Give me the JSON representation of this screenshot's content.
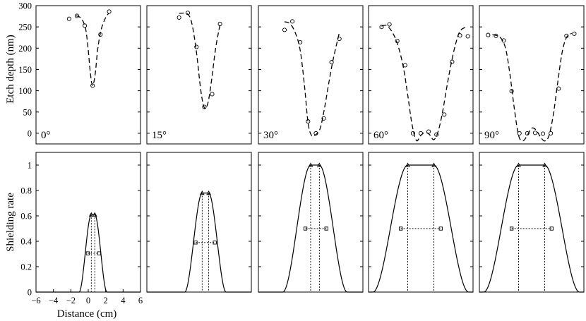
{
  "chart_data": {
    "type": "scatter",
    "layout": "2 rows x 5 panels, shared axes",
    "x": {
      "label": "Distance (cm)",
      "range": [
        -6,
        6
      ],
      "ticks": [
        -6,
        -4,
        -2,
        0,
        2,
        4,
        6
      ]
    },
    "top_row": {
      "ylabel": "Etch depth (nm)",
      "ylim": [
        -25,
        300
      ],
      "yticks": [
        0,
        50,
        100,
        150,
        200,
        250,
        300
      ],
      "series_style": {
        "measured": "open circles",
        "fit": "dashed line"
      }
    },
    "bottom_row": {
      "ylabel": "Shielding rate",
      "ylim": [
        0,
        1.1
      ],
      "yticks": [
        0,
        0.2,
        0.4,
        0.6,
        0.8,
        1
      ],
      "series_style": {
        "profile": "solid line",
        "top_points": "triangles",
        "half_points": "squares",
        "guides": "dotted lines"
      }
    },
    "panels": [
      {
        "angle": "0°",
        "measured": [
          [
            -2.2,
            269
          ],
          [
            -1.3,
            276
          ],
          [
            -0.4,
            253
          ],
          [
            0.5,
            112
          ],
          [
            1.4,
            232
          ],
          [
            2.4,
            286
          ]
        ],
        "fit": [
          [
            -1.4,
            276
          ],
          [
            -0.8,
            270
          ],
          [
            -0.3,
            245
          ],
          [
            0.0,
            195
          ],
          [
            0.25,
            140
          ],
          [
            0.5,
            112
          ],
          [
            0.8,
            140
          ],
          [
            1.1,
            200
          ],
          [
            1.5,
            245
          ],
          [
            2.0,
            272
          ],
          [
            2.4,
            283
          ]
        ],
        "plateau": 0.61,
        "top_points": [
          0.35,
          0.75
        ],
        "half_points": [
          -0.05,
          1.25
        ],
        "half_level": 0.305,
        "rise_width": 0.7
      },
      {
        "angle": "15°",
        "measured": [
          [
            -2.3,
            272
          ],
          [
            -1.3,
            283
          ],
          [
            -0.3,
            203
          ],
          [
            0.6,
            62
          ],
          [
            1.5,
            92
          ],
          [
            2.4,
            257
          ]
        ],
        "fit": [
          [
            -2.3,
            282
          ],
          [
            -1.3,
            280
          ],
          [
            -0.8,
            255
          ],
          [
            -0.3,
            190
          ],
          [
            0.2,
            100
          ],
          [
            0.6,
            60
          ],
          [
            1.0,
            70
          ],
          [
            1.4,
            120
          ],
          [
            1.9,
            200
          ],
          [
            2.4,
            255
          ]
        ],
        "plateau": 0.78,
        "top_points": [
          0.35,
          1.1
        ],
        "half_points": [
          -0.4,
          1.8
        ],
        "half_level": 0.39,
        "rise_width": 1.0
      },
      {
        "angle": "30°",
        "measured": [
          [
            -3.0,
            243
          ],
          [
            -2.1,
            263
          ],
          [
            -1.2,
            214
          ],
          [
            -0.3,
            28
          ],
          [
            0.6,
            0
          ],
          [
            1.5,
            35
          ],
          [
            2.4,
            167
          ],
          [
            3.3,
            222
          ]
        ],
        "fit": [
          [
            -3.0,
            262
          ],
          [
            -2.4,
            258
          ],
          [
            -1.8,
            238
          ],
          [
            -1.2,
            195
          ],
          [
            -0.7,
            110
          ],
          [
            -0.3,
            25
          ],
          [
            0.1,
            -5
          ],
          [
            0.6,
            -3
          ],
          [
            1.1,
            12
          ],
          [
            1.6,
            60
          ],
          [
            2.1,
            120
          ],
          [
            2.6,
            175
          ],
          [
            3.3,
            237
          ]
        ],
        "plateau": 1.0,
        "top_points": [
          0.0,
          1.0
        ],
        "half_points": [
          -0.6,
          1.8
        ],
        "half_level": 0.5,
        "rise_width": 1.6
      },
      {
        "angle": "60°",
        "measured": [
          [
            -4.5,
            250
          ],
          [
            -3.6,
            256
          ],
          [
            -2.7,
            217
          ],
          [
            -1.8,
            160
          ],
          [
            -0.9,
            0
          ],
          [
            0.0,
            0
          ],
          [
            0.9,
            4
          ],
          [
            1.8,
            -3
          ],
          [
            2.7,
            44
          ],
          [
            3.6,
            168
          ],
          [
            4.5,
            230
          ],
          [
            5.4,
            228
          ]
        ],
        "fit": [
          [
            -4.5,
            252
          ],
          [
            -3.9,
            253
          ],
          [
            -3.2,
            235
          ],
          [
            -2.6,
            205
          ],
          [
            -2.0,
            155
          ],
          [
            -1.5,
            90
          ],
          [
            -1.0,
            20
          ],
          [
            -0.5,
            -17
          ],
          [
            0.0,
            -5
          ],
          [
            0.5,
            2
          ],
          [
            1.0,
            -3
          ],
          [
            1.5,
            -15
          ],
          [
            2.0,
            5
          ],
          [
            2.5,
            50
          ],
          [
            3.0,
            110
          ],
          [
            3.5,
            165
          ],
          [
            4.0,
            210
          ],
          [
            4.5,
            240
          ],
          [
            5.2,
            250
          ]
        ],
        "plateau": 1.0,
        "top_points": [
          -1.5,
          1.5
        ],
        "half_points": [
          -2.3,
          2.3
        ],
        "half_level": 0.5,
        "rise_width": 2.0
      },
      {
        "angle": "90°",
        "measured": [
          [
            -5.0,
            231
          ],
          [
            -4.1,
            229
          ],
          [
            -3.2,
            218
          ],
          [
            -2.3,
            99
          ],
          [
            -1.4,
            0
          ],
          [
            -0.5,
            0
          ],
          [
            0.4,
            1
          ],
          [
            1.3,
            -1
          ],
          [
            2.2,
            0
          ],
          [
            3.1,
            105
          ],
          [
            4.0,
            229
          ],
          [
            4.9,
            234
          ]
        ],
        "fit": [
          [
            -4.5,
            232
          ],
          [
            -3.6,
            225
          ],
          [
            -3.0,
            200
          ],
          [
            -2.5,
            140
          ],
          [
            -2.0,
            60
          ],
          [
            -1.5,
            -5
          ],
          [
            -1.0,
            -18
          ],
          [
            -0.5,
            -5
          ],
          [
            0.0,
            12
          ],
          [
            0.5,
            8
          ],
          [
            1.0,
            -8
          ],
          [
            1.5,
            -18
          ],
          [
            2.0,
            -5
          ],
          [
            2.5,
            45
          ],
          [
            3.0,
            120
          ],
          [
            3.5,
            190
          ],
          [
            4.0,
            225
          ],
          [
            4.6,
            235
          ]
        ],
        "plateau": 1.0,
        "top_points": [
          -1.5,
          1.5
        ],
        "half_points": [
          -2.3,
          2.3
        ],
        "half_level": 0.5,
        "rise_width": 2.0
      }
    ]
  }
}
